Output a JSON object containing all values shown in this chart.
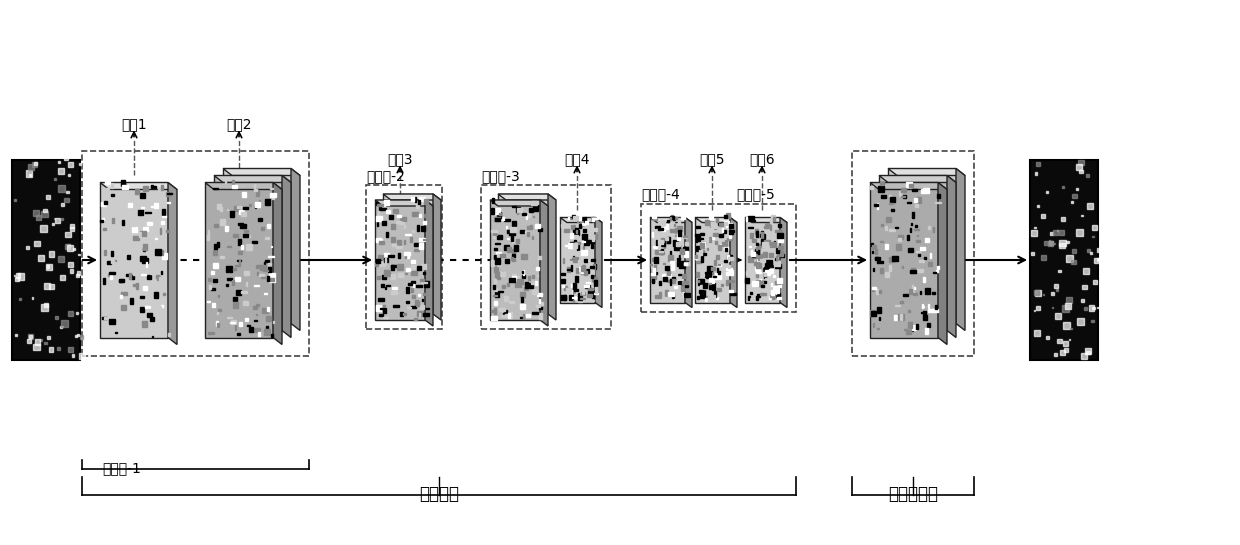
{
  "title_main": "主干网络",
  "title_upsample": "上采样模块",
  "label_block1": "稠密块-1",
  "label_block2": "稠密块-2",
  "label_block3": "稠密块-3",
  "label_block4": "稠密块-4",
  "label_block5": "稠密块-5",
  "branch_labels": [
    "分支1",
    "分支2",
    "分支3",
    "分支4",
    "分支5",
    "分支6"
  ],
  "bg_color": "#ffffff"
}
